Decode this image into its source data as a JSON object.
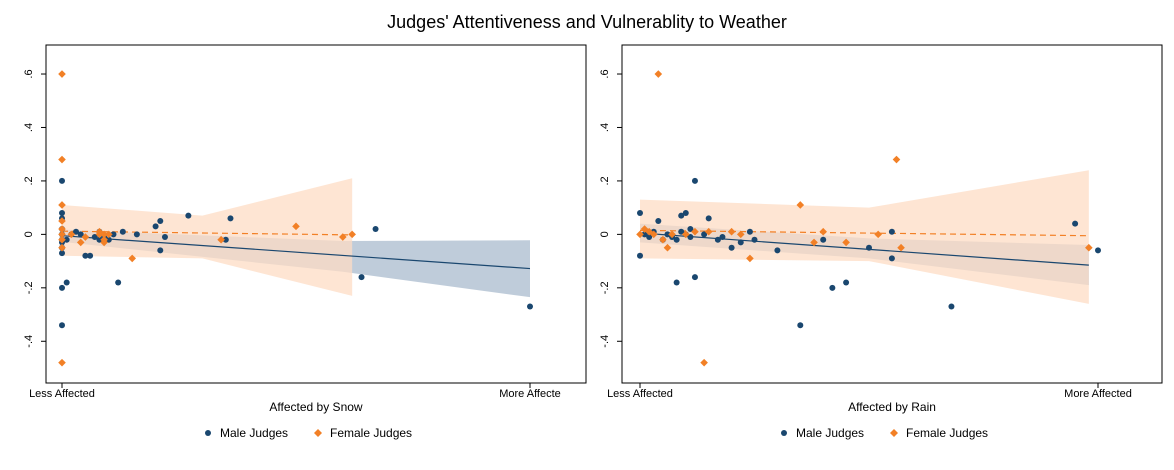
{
  "figure_title": "Judges' Attentiveness and Vulnerablity to Weather",
  "colors": {
    "male": "#1a476f",
    "female": "#f28026",
    "male_ci": "#b4c3d4",
    "female_ci": "#fddcc4",
    "overlap_ci": "#c0b8b4"
  },
  "chart_data": [
    {
      "type": "scatter",
      "title": "",
      "xlabel": "Affected by Snow",
      "x_tick_labels": [
        "Less Affected",
        "More Affecte"
      ],
      "xlim": [
        0,
        1
      ],
      "ylim": [
        -0.5,
        0.63
      ],
      "y_ticks": [
        -0.4,
        -0.2,
        0,
        0.2,
        0.4,
        0.6
      ],
      "y_tick_labels": [
        "-.4",
        "-.2",
        "0",
        ".2",
        ".4",
        ".6"
      ],
      "grid": false,
      "legend": [
        "Male Judges",
        "Female Judges"
      ],
      "legend_placement": "bottom",
      "series": [
        {
          "name": "Male Judges",
          "marker": "circle",
          "points": [
            [
              0.0,
              0.2
            ],
            [
              0.0,
              0.08
            ],
            [
              0.0,
              0.06
            ],
            [
              0.0,
              0.02
            ],
            [
              0.0,
              0.0
            ],
            [
              0.0,
              -0.02
            ],
            [
              0.0,
              -0.03
            ],
            [
              0.0,
              -0.05
            ],
            [
              0.0,
              -0.07
            ],
            [
              0.0,
              -0.2
            ],
            [
              0.0,
              -0.34
            ],
            [
              0.01,
              -0.18
            ],
            [
              0.01,
              -0.02
            ],
            [
              0.02,
              0.0
            ],
            [
              0.03,
              0.01
            ],
            [
              0.04,
              0.0
            ],
            [
              0.05,
              -0.08
            ],
            [
              0.06,
              -0.08
            ],
            [
              0.07,
              -0.01
            ],
            [
              0.08,
              -0.02
            ],
            [
              0.08,
              0.01
            ],
            [
              0.09,
              -0.01
            ],
            [
              0.1,
              -0.02
            ],
            [
              0.11,
              0.0
            ],
            [
              0.12,
              -0.18
            ],
            [
              0.13,
              0.01
            ],
            [
              0.16,
              0.0
            ],
            [
              0.2,
              0.03
            ],
            [
              0.21,
              0.05
            ],
            [
              0.21,
              -0.06
            ],
            [
              0.22,
              -0.01
            ],
            [
              0.27,
              0.07
            ],
            [
              0.35,
              -0.02
            ],
            [
              0.36,
              0.06
            ],
            [
              0.64,
              -0.16
            ],
            [
              0.67,
              0.02
            ],
            [
              1.0,
              -0.27
            ]
          ],
          "fit": {
            "from": [
              0.0,
              -0.005
            ],
            "to": [
              1.0,
              -0.128
            ]
          },
          "ci_upper": [
            [
              0.0,
              0.018
            ],
            [
              0.6,
              -0.025
            ],
            [
              1.0,
              -0.022
            ]
          ],
          "ci_lower": [
            [
              0.0,
              -0.028
            ],
            [
              0.6,
              -0.14
            ],
            [
              1.0,
              -0.235
            ]
          ]
        },
        {
          "name": "Female Judges",
          "marker": "diamond",
          "points": [
            [
              0.0,
              0.6
            ],
            [
              0.0,
              0.28
            ],
            [
              0.0,
              0.11
            ],
            [
              0.0,
              0.05
            ],
            [
              0.0,
              0.02
            ],
            [
              0.0,
              0.0
            ],
            [
              0.0,
              -0.02
            ],
            [
              0.0,
              -0.05
            ],
            [
              0.0,
              -0.48
            ],
            [
              0.02,
              0.0
            ],
            [
              0.04,
              -0.03
            ],
            [
              0.05,
              -0.01
            ],
            [
              0.08,
              0.01
            ],
            [
              0.08,
              0.0
            ],
            [
              0.09,
              0.0
            ],
            [
              0.09,
              -0.02
            ],
            [
              0.09,
              -0.03
            ],
            [
              0.1,
              0.0
            ],
            [
              0.15,
              -0.09
            ],
            [
              0.34,
              -0.02
            ],
            [
              0.5,
              0.03
            ],
            [
              0.6,
              -0.01
            ],
            [
              0.62,
              0.0
            ]
          ],
          "fit": {
            "from": [
              0.0,
              0.012
            ],
            "to": [
              0.62,
              -0.002
            ]
          },
          "ci_upper": [
            [
              0.0,
              0.11
            ],
            [
              0.3,
              0.07
            ],
            [
              0.62,
              0.21
            ]
          ],
          "ci_lower": [
            [
              0.0,
              -0.08
            ],
            [
              0.3,
              -0.09
            ],
            [
              0.62,
              -0.23
            ]
          ]
        }
      ]
    },
    {
      "type": "scatter",
      "title": "",
      "xlabel": "Affected by Rain",
      "x_tick_labels": [
        "Less Affected",
        "More Affected"
      ],
      "xlim": [
        0,
        1
      ],
      "ylim": [
        -0.5,
        0.63
      ],
      "y_ticks": [
        -0.4,
        -0.2,
        0,
        0.2,
        0.4,
        0.6
      ],
      "y_tick_labels": [
        "-.4",
        "-.2",
        "0",
        ".2",
        ".4",
        ".6"
      ],
      "grid": false,
      "legend": [
        "Male Judges",
        "Female Judges"
      ],
      "legend_placement": "bottom",
      "series": [
        {
          "name": "Male Judges",
          "marker": "circle",
          "points": [
            [
              0.0,
              0.08
            ],
            [
              0.0,
              -0.08
            ],
            [
              0.01,
              0.0
            ],
            [
              0.02,
              -0.01
            ],
            [
              0.03,
              0.01
            ],
            [
              0.04,
              0.05
            ],
            [
              0.05,
              -0.02
            ],
            [
              0.06,
              0.0
            ],
            [
              0.07,
              -0.01
            ],
            [
              0.08,
              -0.02
            ],
            [
              0.08,
              -0.18
            ],
            [
              0.09,
              0.01
            ],
            [
              0.09,
              0.07
            ],
            [
              0.1,
              0.0
            ],
            [
              0.1,
              0.08
            ],
            [
              0.11,
              0.02
            ],
            [
              0.11,
              -0.01
            ],
            [
              0.12,
              0.2
            ],
            [
              0.12,
              -0.16
            ],
            [
              0.14,
              0.0
            ],
            [
              0.15,
              0.06
            ],
            [
              0.17,
              -0.02
            ],
            [
              0.18,
              -0.01
            ],
            [
              0.2,
              -0.05
            ],
            [
              0.22,
              -0.03
            ],
            [
              0.24,
              0.01
            ],
            [
              0.25,
              -0.02
            ],
            [
              0.3,
              -0.06
            ],
            [
              0.35,
              -0.34
            ],
            [
              0.4,
              -0.02
            ],
            [
              0.42,
              -0.2
            ],
            [
              0.45,
              -0.18
            ],
            [
              0.5,
              -0.05
            ],
            [
              0.55,
              0.01
            ],
            [
              0.55,
              -0.09
            ],
            [
              0.68,
              -0.27
            ],
            [
              0.95,
              0.04
            ],
            [
              1.0,
              -0.06
            ]
          ],
          "fit": {
            "from": [
              0.0,
              0.005
            ],
            "to": [
              0.98,
              -0.115
            ]
          },
          "ci_upper": [
            [
              0.0,
              0.04
            ],
            [
              0.5,
              -0.015
            ],
            [
              0.98,
              -0.04
            ]
          ],
          "ci_lower": [
            [
              0.0,
              -0.03
            ],
            [
              0.5,
              -0.09
            ],
            [
              0.98,
              -0.19
            ]
          ]
        },
        {
          "name": "Female Judges",
          "marker": "diamond",
          "points": [
            [
              0.0,
              0.0
            ],
            [
              0.01,
              0.02
            ],
            [
              0.02,
              0.01
            ],
            [
              0.03,
              0.0
            ],
            [
              0.04,
              0.6
            ],
            [
              0.05,
              -0.02
            ],
            [
              0.06,
              -0.05
            ],
            [
              0.07,
              0.0
            ],
            [
              0.1,
              0.0
            ],
            [
              0.12,
              0.01
            ],
            [
              0.14,
              -0.48
            ],
            [
              0.15,
              0.01
            ],
            [
              0.2,
              0.01
            ],
            [
              0.22,
              0.0
            ],
            [
              0.24,
              -0.09
            ],
            [
              0.35,
              0.11
            ],
            [
              0.38,
              -0.03
            ],
            [
              0.4,
              0.01
            ],
            [
              0.45,
              -0.03
            ],
            [
              0.52,
              0.0
            ],
            [
              0.56,
              0.28
            ],
            [
              0.57,
              -0.05
            ],
            [
              0.98,
              -0.05
            ]
          ],
          "fit": {
            "from": [
              0.0,
              0.015
            ],
            "to": [
              0.98,
              -0.005
            ]
          },
          "ci_upper": [
            [
              0.0,
              0.13
            ],
            [
              0.5,
              0.1
            ],
            [
              0.98,
              0.24
            ]
          ],
          "ci_lower": [
            [
              0.0,
              -0.09
            ],
            [
              0.5,
              -0.1
            ],
            [
              0.98,
              -0.26
            ]
          ]
        }
      ]
    }
  ]
}
